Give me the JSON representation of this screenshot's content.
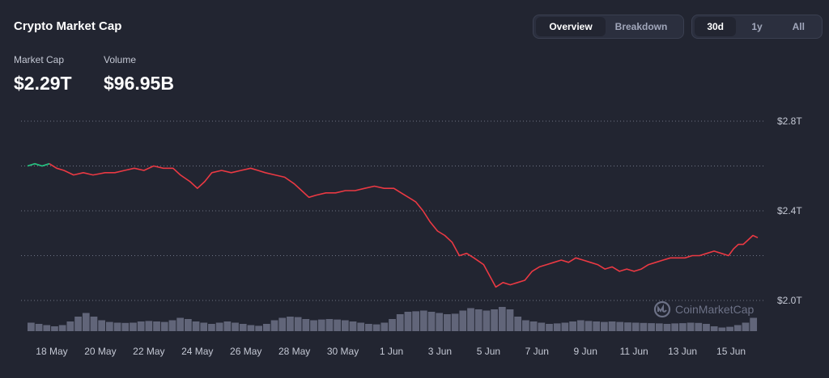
{
  "header": {
    "title": "Crypto Market Cap"
  },
  "view_tabs": [
    {
      "label": "Overview",
      "active": true
    },
    {
      "label": "Breakdown",
      "active": false
    }
  ],
  "range_tabs": [
    {
      "label": "30d",
      "active": true
    },
    {
      "label": "1y",
      "active": false
    },
    {
      "label": "All",
      "active": false
    }
  ],
  "stats": {
    "market_cap_label": "Market Cap",
    "market_cap_value": "$2.29T",
    "volume_label": "Volume",
    "volume_value": "$96.95B"
  },
  "watermark": {
    "text": "CoinMarketCap",
    "icon": "coinmarketcap-logo-icon"
  },
  "colors": {
    "background": "#222531",
    "line_down": "#ea3943",
    "line_up": "#16c784",
    "volume_bar": "#6c7186",
    "grid": "#a1a7bb"
  },
  "chart_data": {
    "type": "line",
    "title": "",
    "y_ticks": [
      "$2.8T",
      "$2.4T",
      "$2.0T"
    ],
    "ylim": [
      1.95,
      2.8
    ],
    "grid": "dotted horizontal",
    "x_ticks": [
      "18 May",
      "20 May",
      "22 May",
      "24 May",
      "26 May",
      "28 May",
      "30 May",
      "1 Jun",
      "3 Jun",
      "5 Jun",
      "7 Jun",
      "9 Jun",
      "11 Jun",
      "13 Jun",
      "15 Jun"
    ],
    "x_tick_days": [
      1,
      3,
      5,
      7,
      9,
      11,
      13,
      15,
      17,
      19,
      21,
      23,
      25,
      27,
      29
    ],
    "series": [
      {
        "unit": "trillion USD",
        "points": [
          [
            0.0,
            2.6
          ],
          [
            0.3,
            2.61
          ],
          [
            0.6,
            2.6
          ],
          [
            0.9,
            2.61
          ],
          [
            1.2,
            2.59
          ],
          [
            1.5,
            2.58
          ],
          [
            1.9,
            2.56
          ],
          [
            2.3,
            2.57
          ],
          [
            2.7,
            2.56
          ],
          [
            3.2,
            2.57
          ],
          [
            3.6,
            2.57
          ],
          [
            4.0,
            2.58
          ],
          [
            4.4,
            2.59
          ],
          [
            4.8,
            2.58
          ],
          [
            5.2,
            2.6
          ],
          [
            5.6,
            2.59
          ],
          [
            6.0,
            2.59
          ],
          [
            6.3,
            2.56
          ],
          [
            6.7,
            2.53
          ],
          [
            7.0,
            2.5
          ],
          [
            7.3,
            2.53
          ],
          [
            7.6,
            2.57
          ],
          [
            8.0,
            2.58
          ],
          [
            8.4,
            2.57
          ],
          [
            8.8,
            2.58
          ],
          [
            9.2,
            2.59
          ],
          [
            9.5,
            2.58
          ],
          [
            9.8,
            2.57
          ],
          [
            10.2,
            2.56
          ],
          [
            10.6,
            2.55
          ],
          [
            11.0,
            2.52
          ],
          [
            11.3,
            2.49
          ],
          [
            11.6,
            2.46
          ],
          [
            11.9,
            2.47
          ],
          [
            12.3,
            2.48
          ],
          [
            12.7,
            2.48
          ],
          [
            13.1,
            2.49
          ],
          [
            13.5,
            2.49
          ],
          [
            13.9,
            2.5
          ],
          [
            14.3,
            2.51
          ],
          [
            14.7,
            2.5
          ],
          [
            15.1,
            2.5
          ],
          [
            15.4,
            2.48
          ],
          [
            15.7,
            2.46
          ],
          [
            16.0,
            2.44
          ],
          [
            16.3,
            2.4
          ],
          [
            16.6,
            2.35
          ],
          [
            16.9,
            2.31
          ],
          [
            17.2,
            2.29
          ],
          [
            17.5,
            2.26
          ],
          [
            17.8,
            2.2
          ],
          [
            18.1,
            2.21
          ],
          [
            18.4,
            2.19
          ],
          [
            18.8,
            2.16
          ],
          [
            19.1,
            2.1
          ],
          [
            19.3,
            2.06
          ],
          [
            19.6,
            2.08
          ],
          [
            19.9,
            2.07
          ],
          [
            20.2,
            2.08
          ],
          [
            20.5,
            2.09
          ],
          [
            20.8,
            2.13
          ],
          [
            21.1,
            2.15
          ],
          [
            21.4,
            2.16
          ],
          [
            21.7,
            2.17
          ],
          [
            22.0,
            2.18
          ],
          [
            22.3,
            2.17
          ],
          [
            22.6,
            2.19
          ],
          [
            22.9,
            2.18
          ],
          [
            23.2,
            2.17
          ],
          [
            23.5,
            2.16
          ],
          [
            23.8,
            2.14
          ],
          [
            24.1,
            2.15
          ],
          [
            24.4,
            2.13
          ],
          [
            24.7,
            2.14
          ],
          [
            25.0,
            2.13
          ],
          [
            25.3,
            2.14
          ],
          [
            25.6,
            2.16
          ],
          [
            25.9,
            2.17
          ],
          [
            26.2,
            2.18
          ],
          [
            26.5,
            2.19
          ],
          [
            26.8,
            2.19
          ],
          [
            27.1,
            2.19
          ],
          [
            27.4,
            2.2
          ],
          [
            27.7,
            2.2
          ],
          [
            28.0,
            2.21
          ],
          [
            28.3,
            2.22
          ],
          [
            28.6,
            2.21
          ],
          [
            28.9,
            2.2
          ],
          [
            29.1,
            2.23
          ],
          [
            29.3,
            2.25
          ],
          [
            29.5,
            2.25
          ],
          [
            29.7,
            2.27
          ],
          [
            29.9,
            2.29
          ],
          [
            30.1,
            2.28
          ]
        ]
      }
    ],
    "volume_series": {
      "unit": "relative",
      "values": [
        0.35,
        0.3,
        0.25,
        0.2,
        0.25,
        0.4,
        0.6,
        0.75,
        0.6,
        0.45,
        0.38,
        0.35,
        0.34,
        0.35,
        0.4,
        0.42,
        0.4,
        0.38,
        0.45,
        0.55,
        0.5,
        0.4,
        0.35,
        0.3,
        0.35,
        0.4,
        0.35,
        0.3,
        0.25,
        0.22,
        0.3,
        0.45,
        0.55,
        0.6,
        0.58,
        0.5,
        0.45,
        0.48,
        0.5,
        0.48,
        0.45,
        0.4,
        0.35,
        0.3,
        0.28,
        0.35,
        0.5,
        0.7,
        0.8,
        0.82,
        0.85,
        0.8,
        0.75,
        0.7,
        0.72,
        0.85,
        0.95,
        0.9,
        0.85,
        0.9,
        1.0,
        0.9,
        0.6,
        0.45,
        0.4,
        0.35,
        0.3,
        0.32,
        0.35,
        0.4,
        0.45,
        0.42,
        0.4,
        0.38,
        0.4,
        0.38,
        0.36,
        0.35,
        0.34,
        0.33,
        0.32,
        0.3,
        0.32,
        0.33,
        0.35,
        0.34,
        0.3,
        0.2,
        0.15,
        0.18,
        0.25,
        0.35,
        0.55
      ]
    }
  }
}
